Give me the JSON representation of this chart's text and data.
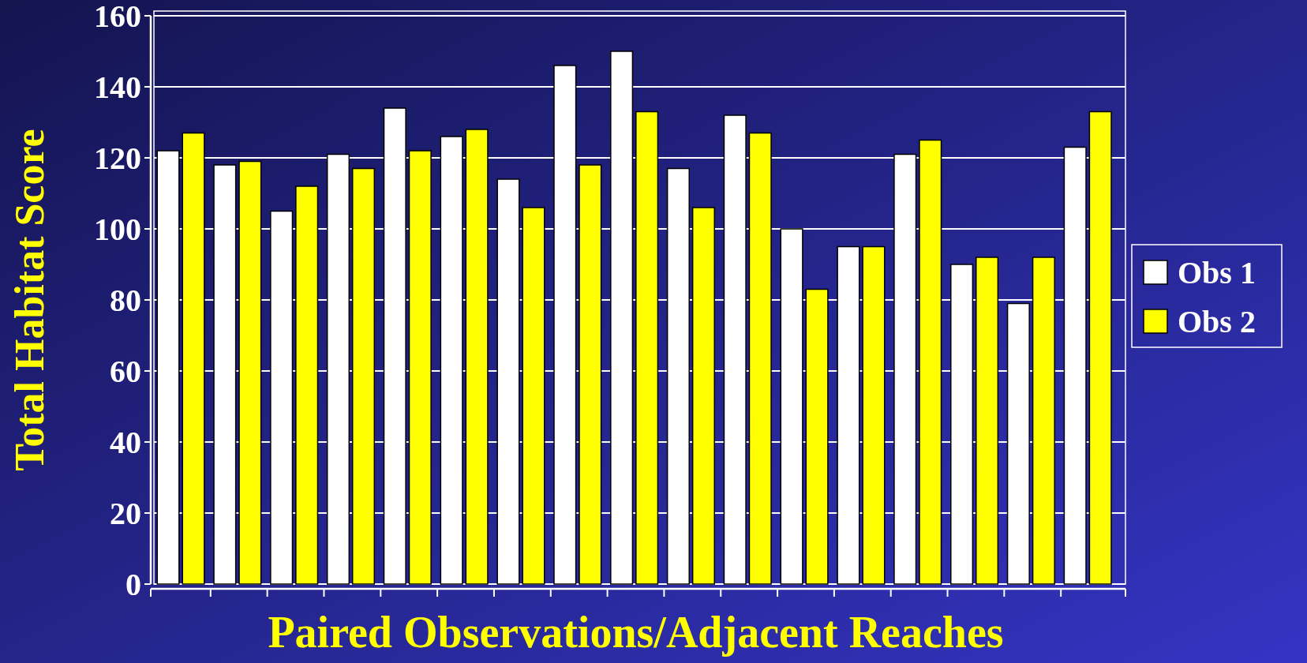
{
  "chart_data": {
    "type": "bar",
    "xlabel": "Paired Observations/Adjacent Reaches",
    "ylabel": "Total Habitat Score",
    "categories": [
      null,
      null,
      null,
      null,
      null,
      null,
      null,
      null,
      null,
      null,
      null,
      null,
      null,
      null,
      null,
      null,
      null
    ],
    "series": [
      {
        "name": "Obs 1",
        "color": "#ffffff",
        "values": [
          122,
          118,
          105,
          121,
          134,
          126,
          114,
          146,
          150,
          117,
          132,
          100,
          95,
          121,
          90,
          79,
          123
        ]
      },
      {
        "name": "Obs 2",
        "color": "#ffff00",
        "values": [
          127,
          119,
          112,
          117,
          122,
          128,
          106,
          118,
          133,
          106,
          127,
          83,
          95,
          125,
          92,
          92,
          133
        ]
      }
    ],
    "ylim": [
      0,
      160
    ],
    "yticks": [
      0,
      20,
      40,
      60,
      80,
      100,
      120,
      140,
      160
    ],
    "grid": "y",
    "legend": "right"
  }
}
